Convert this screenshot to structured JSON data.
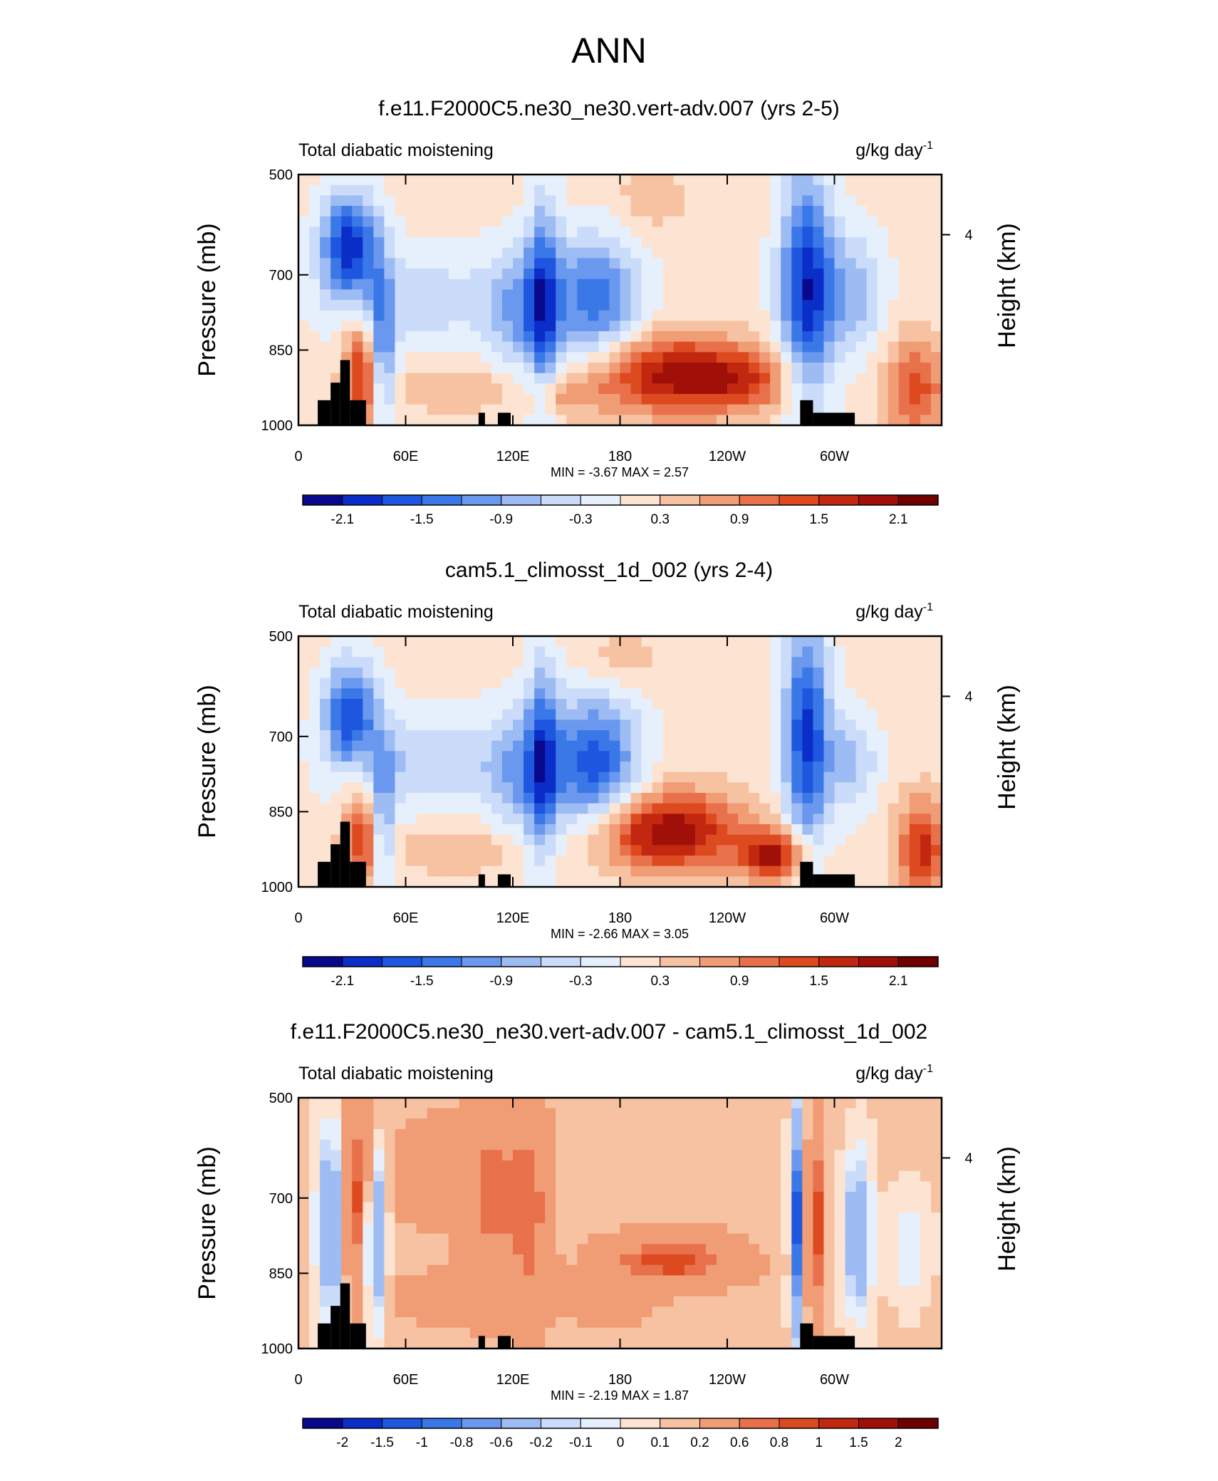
{
  "page": {
    "title": "ANN"
  },
  "panels": [
    {
      "title": "f.e11.F2000C5.ne30_ne30.vert-adv.007 (yrs 2-5)",
      "left_label": "Total diabatic moistening",
      "right_label": "g/kg day",
      "right_label_sup": "-1",
      "stats": "MIN =  -3.67  MAX =   2.57",
      "colorbar_labels": [
        "-2.1",
        "-1.5",
        "-0.9",
        "-0.3",
        "0.3",
        "0.9",
        "1.5",
        "2.1"
      ],
      "palette": "full"
    },
    {
      "title": "cam5.1_climosst_1d_002 (yrs 2-4)",
      "left_label": "Total diabatic moistening",
      "right_label": "g/kg day",
      "right_label_sup": "-1",
      "stats": "MIN =  -2.66  MAX =   3.05",
      "colorbar_labels": [
        "-2.1",
        "-1.5",
        "-0.9",
        "-0.3",
        "0.3",
        "0.9",
        "1.5",
        "2.1"
      ],
      "palette": "full"
    },
    {
      "title": "f.e11.F2000C5.ne30_ne30.vert-adv.007 - cam5.1_climosst_1d_002",
      "left_label": "Total diabatic moistening",
      "right_label": "g/kg day",
      "right_label_sup": "-1",
      "stats": "MIN =  -2.19  MAX =   1.87",
      "colorbar_labels": [
        "-2",
        "-1.5",
        "-1",
        "-0.8",
        "-0.6",
        "-0.2",
        "-0.1",
        "0",
        "0.1",
        "0.2",
        "0.6",
        "0.8",
        "1",
        "1.5",
        "2"
      ],
      "palette": "diff"
    }
  ],
  "axes": {
    "ylabel": "Pressure (mb)",
    "y2label": "Height (km)",
    "yticks": [
      "500",
      "700",
      "850",
      "1000"
    ],
    "y2ticks": [
      "4"
    ],
    "xticks": [
      "0",
      "60E",
      "120E",
      "180",
      "120W",
      "60W"
    ]
  },
  "colors": {
    "full": [
      "#08088c",
      "#0b2ec8",
      "#1f56e0",
      "#3a78e8",
      "#6a98ef",
      "#9ebcf4",
      "#cadcfa",
      "#e6f0fd",
      "#fde4d2",
      "#f7c2a2",
      "#f09c74",
      "#e8704a",
      "#dd4a20",
      "#c22810",
      "#a01008",
      "#700000"
    ],
    "diff": [
      "#08088c",
      "#0b2ec8",
      "#1f56e0",
      "#3a78e8",
      "#6a98ef",
      "#9ebcf4",
      "#cadcfa",
      "#e6f0fd",
      "#fde4d2",
      "#f7c2a2",
      "#f09c74",
      "#e8704a",
      "#dd4a20",
      "#c22810",
      "#a01008",
      "#700000"
    ]
  },
  "chart_data": [
    {
      "type": "heatmap",
      "title": "f.e11.F2000C5.ne30_ne30.vert-adv.007 (yrs 2-5)",
      "subtitle": "Total diabatic moistening",
      "units": "g/kg day-1",
      "ylabel": "Pressure (mb)",
      "y2label": "Height (km)",
      "ylim": [
        1000,
        500
      ],
      "x_ticks": [
        "0",
        "60E",
        "120E",
        "180",
        "120W",
        "60W"
      ],
      "min": -3.67,
      "max": 2.57,
      "levels": [
        -2.1,
        -1.8,
        -1.5,
        -1.2,
        -0.9,
        -0.6,
        -0.3,
        0,
        0.3,
        0.6,
        0.9,
        1.2,
        1.5,
        1.8,
        2.1
      ]
    },
    {
      "type": "heatmap",
      "title": "cam5.1_climosst_1d_002 (yrs 2-4)",
      "subtitle": "Total diabatic moistening",
      "units": "g/kg day-1",
      "ylabel": "Pressure (mb)",
      "y2label": "Height (km)",
      "ylim": [
        1000,
        500
      ],
      "x_ticks": [
        "0",
        "60E",
        "120E",
        "180",
        "120W",
        "60W"
      ],
      "min": -2.66,
      "max": 3.05,
      "levels": [
        -2.1,
        -1.8,
        -1.5,
        -1.2,
        -0.9,
        -0.6,
        -0.3,
        0,
        0.3,
        0.6,
        0.9,
        1.2,
        1.5,
        1.8,
        2.1
      ]
    },
    {
      "type": "heatmap",
      "title": "f.e11.F2000C5.ne30_ne30.vert-adv.007 - cam5.1_climosst_1d_002",
      "subtitle": "Total diabatic moistening",
      "units": "g/kg day-1",
      "ylabel": "Pressure (mb)",
      "y2label": "Height (km)",
      "ylim": [
        1000,
        500
      ],
      "x_ticks": [
        "0",
        "60E",
        "120E",
        "180",
        "120W",
        "60W"
      ],
      "min": -2.19,
      "max": 1.87,
      "levels": [
        -2,
        -1.5,
        -1,
        -0.8,
        -0.6,
        -0.2,
        -0.1,
        0,
        0.1,
        0.2,
        0.6,
        0.8,
        1,
        1.5,
        2
      ]
    }
  ]
}
